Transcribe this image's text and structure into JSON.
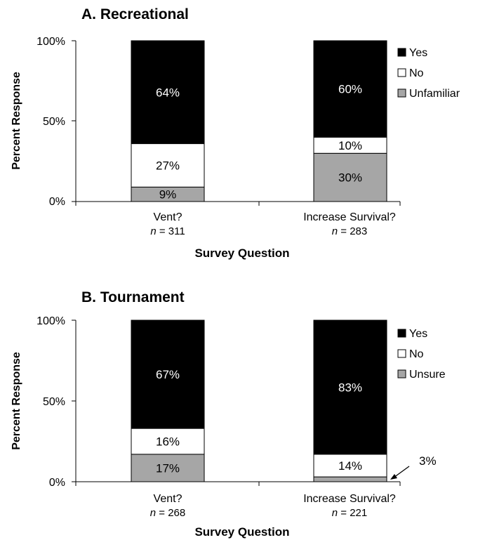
{
  "chart_data": [
    {
      "type": "bar",
      "stacked": true,
      "title": "A. Recreational",
      "ylabel": "Percent Response",
      "xlabel": "Survey Question",
      "ylim": [
        0,
        100
      ],
      "yticks": [
        "0%",
        "50%",
        "100%"
      ],
      "categories": [
        "Vent?",
        "Increase Survival?"
      ],
      "n_prefix": "n",
      "n_values": [
        "= 311",
        "= 283"
      ],
      "legend_position": "right",
      "series": [
        {
          "name": "Unfamiliar",
          "color": "#a6a6a6",
          "values": [
            9,
            30
          ],
          "labels": [
            "9%",
            "30%"
          ]
        },
        {
          "name": "No",
          "color": "#ffffff",
          "values": [
            27,
            10
          ],
          "labels": [
            "27%",
            "10%"
          ]
        },
        {
          "name": "Yes",
          "color": "#000000",
          "values": [
            64,
            60
          ],
          "labels": [
            "64%",
            "60%"
          ]
        }
      ]
    },
    {
      "type": "bar",
      "stacked": true,
      "title": "B. Tournament",
      "ylabel": "Percent Response",
      "xlabel": "Survey Question",
      "ylim": [
        0,
        100
      ],
      "yticks": [
        "0%",
        "50%",
        "100%"
      ],
      "categories": [
        "Vent?",
        "Increase Survival?"
      ],
      "n_prefix": "n",
      "n_values": [
        "= 268",
        "= 221"
      ],
      "legend_position": "right",
      "series": [
        {
          "name": "Unsure",
          "color": "#a6a6a6",
          "values": [
            17,
            3
          ],
          "labels": [
            "17%",
            "3%"
          ]
        },
        {
          "name": "No",
          "color": "#ffffff",
          "values": [
            16,
            14
          ],
          "labels": [
            "16%",
            "14%"
          ]
        },
        {
          "name": "Yes",
          "color": "#000000",
          "values": [
            67,
            83
          ],
          "labels": [
            "67%",
            "83%"
          ]
        }
      ]
    }
  ]
}
